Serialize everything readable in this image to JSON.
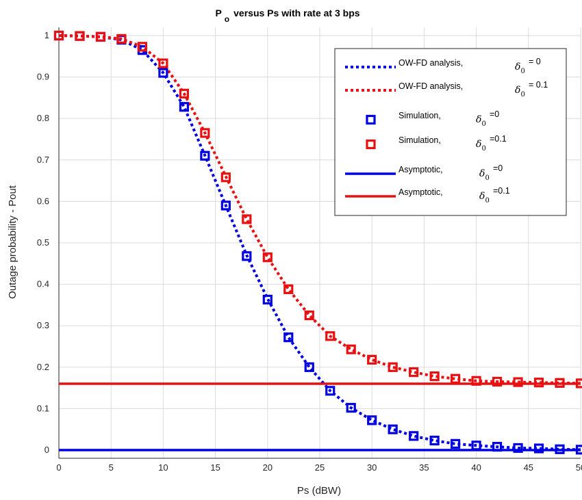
{
  "chart_data": {
    "type": "line",
    "title": {
      "main": "P",
      "sub": "o",
      "rest": "versus Ps with rate at 3 bps"
    },
    "xlabel": "Ps (dBW)",
    "ylabel": "Outage probability - Pout",
    "xlim": [
      0,
      50
    ],
    "ylim": [
      0,
      1
    ],
    "xticks": [
      0,
      5,
      10,
      15,
      20,
      25,
      30,
      35,
      40,
      45,
      50
    ],
    "yticks": [
      0,
      0.1,
      0.2,
      0.3,
      0.4,
      0.5,
      0.6,
      0.7,
      0.8,
      0.9,
      1
    ],
    "ytick_labels": [
      "0",
      "0.1",
      "0.2",
      "0.3",
      "0.4",
      "0.5",
      "0.6",
      "0.7",
      "0.8",
      "0.9",
      "1"
    ],
    "grid": true,
    "legend_position": "top-right",
    "colors": {
      "blue": "#0000e0",
      "red": "#e81010",
      "grid": "#dadada",
      "axis": "#262626"
    },
    "series": [
      {
        "name": "OW-FD analysis,",
        "delta_text": "= 0",
        "style": "dotted",
        "color": "#0000e0",
        "x": [
          0,
          2,
          4,
          6,
          8,
          10,
          12,
          14,
          16,
          18,
          20,
          22,
          24,
          26,
          28,
          30,
          32,
          34,
          36,
          38,
          40,
          42,
          44,
          46,
          48,
          50
        ],
        "y": [
          1.0,
          0.999,
          0.997,
          0.99,
          0.965,
          0.91,
          0.828,
          0.71,
          0.59,
          0.47,
          0.365,
          0.272,
          0.2,
          0.143,
          0.102,
          0.072,
          0.05,
          0.034,
          0.023,
          0.015,
          0.011,
          0.008,
          0.005,
          0.004,
          0.002,
          0.001
        ]
      },
      {
        "name": "OW-FD analysis,",
        "delta_text": "= 0.1",
        "style": "dotted",
        "color": "#e81010",
        "x": [
          0,
          2,
          4,
          6,
          8,
          10,
          12,
          14,
          16,
          18,
          20,
          22,
          24,
          26,
          28,
          30,
          32,
          34,
          36,
          38,
          40,
          42,
          44,
          46,
          48,
          50
        ],
        "y": [
          1.0,
          0.999,
          0.997,
          0.992,
          0.973,
          0.933,
          0.86,
          0.765,
          0.66,
          0.557,
          0.465,
          0.388,
          0.325,
          0.275,
          0.243,
          0.218,
          0.2,
          0.188,
          0.178,
          0.172,
          0.167,
          0.165,
          0.164,
          0.163,
          0.162,
          0.161
        ]
      },
      {
        "name": "Simulation,",
        "delta_text": "=0",
        "style": "square",
        "color": "#0000e0",
        "x": [
          0,
          2,
          4,
          6,
          8,
          10,
          12,
          14,
          16,
          18,
          20,
          22,
          24,
          26,
          28,
          30,
          32,
          34,
          36,
          38,
          40,
          42,
          44,
          46,
          48,
          50
        ],
        "y": [
          1.0,
          0.999,
          0.997,
          0.99,
          0.965,
          0.91,
          0.828,
          0.71,
          0.59,
          0.468,
          0.363,
          0.272,
          0.2,
          0.143,
          0.102,
          0.072,
          0.05,
          0.034,
          0.023,
          0.015,
          0.011,
          0.008,
          0.005,
          0.004,
          0.002,
          0.001
        ]
      },
      {
        "name": "Simulation,",
        "delta_text": "=0.1",
        "style": "square",
        "color": "#e81010",
        "x": [
          0,
          2,
          4,
          6,
          8,
          10,
          12,
          14,
          16,
          18,
          20,
          22,
          24,
          26,
          28,
          30,
          32,
          34,
          36,
          38,
          40,
          42,
          44,
          46,
          48,
          50
        ],
        "y": [
          1.0,
          0.999,
          0.997,
          0.992,
          0.973,
          0.933,
          0.86,
          0.765,
          0.658,
          0.557,
          0.465,
          0.388,
          0.325,
          0.275,
          0.243,
          0.218,
          0.2,
          0.188,
          0.178,
          0.172,
          0.167,
          0.165,
          0.164,
          0.163,
          0.162,
          0.161
        ]
      },
      {
        "name": "Asymptotic,",
        "delta_text": "=0",
        "style": "solid",
        "color": "#0000e0",
        "x": [
          0,
          50
        ],
        "y": [
          0.0,
          0.0
        ]
      },
      {
        "name": "Asymptotic,",
        "delta_text": "=0.1",
        "style": "solid",
        "color": "#e81010",
        "x": [
          0,
          50
        ],
        "y": [
          0.16,
          0.16
        ]
      }
    ]
  }
}
